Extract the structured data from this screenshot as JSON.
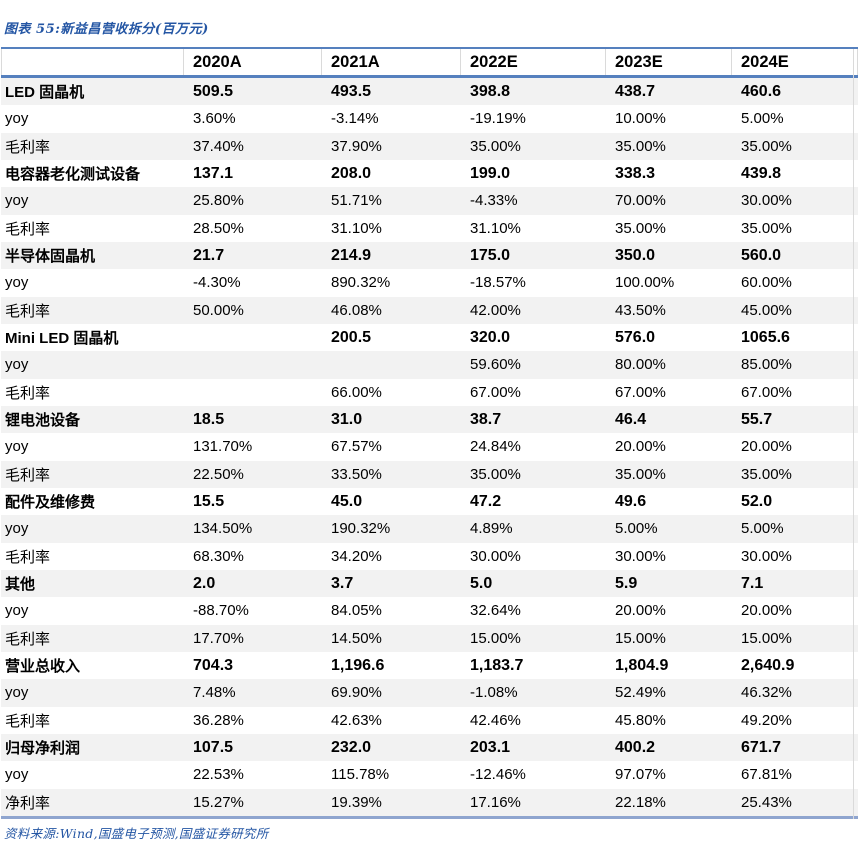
{
  "figure": {
    "title": "图表 55:新益昌营收拆分(百万元)"
  },
  "source": {
    "text": "资料来源:Wind,国盛电子预测,国盛证券研究所"
  },
  "colors": {
    "accent_blue": "#2456A4",
    "border_blue": "#5580BE",
    "border_blue_light": "#8FA5CF",
    "row_stripe": "#F2F2F2"
  },
  "chart_data": {
    "type": "table",
    "title": "图表 55:新益昌营收拆分(百万元)",
    "columns": [
      "",
      "2020A",
      "2021A",
      "2022E",
      "2023E",
      "2024E"
    ],
    "rows": [
      {
        "label": "LED 固晶机",
        "bold": true,
        "values": [
          "509.5",
          "493.5",
          "398.8",
          "438.7",
          "460.6"
        ]
      },
      {
        "label": "yoy",
        "bold": false,
        "values": [
          "3.60%",
          "-3.14%",
          "-19.19%",
          "10.00%",
          "5.00%"
        ]
      },
      {
        "label": "毛利率",
        "bold": false,
        "values": [
          "37.40%",
          "37.90%",
          "35.00%",
          "35.00%",
          "35.00%"
        ]
      },
      {
        "label": "电容器老化测试设备",
        "bold": true,
        "values": [
          "137.1",
          "208.0",
          "199.0",
          "338.3",
          "439.8"
        ]
      },
      {
        "label": "yoy",
        "bold": false,
        "values": [
          "25.80%",
          "51.71%",
          "-4.33%",
          "70.00%",
          "30.00%"
        ]
      },
      {
        "label": "毛利率",
        "bold": false,
        "values": [
          "28.50%",
          "31.10%",
          "31.10%",
          "35.00%",
          "35.00%"
        ]
      },
      {
        "label": "半导体固晶机",
        "bold": true,
        "values": [
          "21.7",
          "214.9",
          "175.0",
          "350.0",
          "560.0"
        ]
      },
      {
        "label": "yoy",
        "bold": false,
        "values": [
          "-4.30%",
          "890.32%",
          "-18.57%",
          "100.00%",
          "60.00%"
        ]
      },
      {
        "label": "毛利率",
        "bold": false,
        "values": [
          "50.00%",
          "46.08%",
          "42.00%",
          "43.50%",
          "45.00%"
        ]
      },
      {
        "label": "Mini LED 固晶机",
        "bold": true,
        "values": [
          "",
          "200.5",
          "320.0",
          "576.0",
          "1065.6"
        ]
      },
      {
        "label": "yoy",
        "bold": false,
        "values": [
          "",
          "",
          "59.60%",
          "80.00%",
          "85.00%"
        ]
      },
      {
        "label": "毛利率",
        "bold": false,
        "values": [
          "",
          "66.00%",
          "67.00%",
          "67.00%",
          "67.00%"
        ]
      },
      {
        "label": "锂电池设备",
        "bold": true,
        "values": [
          "18.5",
          "31.0",
          "38.7",
          "46.4",
          "55.7"
        ]
      },
      {
        "label": "yoy",
        "bold": false,
        "values": [
          "131.70%",
          "67.57%",
          "24.84%",
          "20.00%",
          "20.00%"
        ]
      },
      {
        "label": "毛利率",
        "bold": false,
        "values": [
          "22.50%",
          "33.50%",
          "35.00%",
          "35.00%",
          "35.00%"
        ]
      },
      {
        "label": "配件及维修费",
        "bold": true,
        "values": [
          "15.5",
          "45.0",
          "47.2",
          "49.6",
          "52.0"
        ]
      },
      {
        "label": "yoy",
        "bold": false,
        "values": [
          "134.50%",
          "190.32%",
          "4.89%",
          "5.00%",
          "5.00%"
        ]
      },
      {
        "label": "毛利率",
        "bold": false,
        "values": [
          "68.30%",
          "34.20%",
          "30.00%",
          "30.00%",
          "30.00%"
        ]
      },
      {
        "label": "其他",
        "bold": true,
        "values": [
          "2.0",
          "3.7",
          "5.0",
          "5.9",
          "7.1"
        ]
      },
      {
        "label": "yoy",
        "bold": false,
        "values": [
          "-88.70%",
          "84.05%",
          "32.64%",
          "20.00%",
          "20.00%"
        ]
      },
      {
        "label": "毛利率",
        "bold": false,
        "values": [
          "17.70%",
          "14.50%",
          "15.00%",
          "15.00%",
          "15.00%"
        ]
      },
      {
        "label": "营业总收入",
        "bold": true,
        "values": [
          "704.3",
          "1,196.6",
          "1,183.7",
          "1,804.9",
          "2,640.9"
        ]
      },
      {
        "label": "yoy",
        "bold": false,
        "values": [
          "7.48%",
          "69.90%",
          "-1.08%",
          "52.49%",
          "46.32%"
        ]
      },
      {
        "label": "毛利率",
        "bold": false,
        "values": [
          "36.28%",
          "42.63%",
          "42.46%",
          "45.80%",
          "49.20%"
        ]
      },
      {
        "label": "归母净利润",
        "bold": true,
        "values": [
          "107.5",
          "232.0",
          "203.1",
          "400.2",
          "671.7"
        ]
      },
      {
        "label": "yoy",
        "bold": false,
        "values": [
          "22.53%",
          "115.78%",
          "-12.46%",
          "97.07%",
          "67.81%"
        ]
      },
      {
        "label": "净利率",
        "bold": false,
        "values": [
          "15.27%",
          "19.39%",
          "17.16%",
          "22.18%",
          "25.43%"
        ]
      }
    ]
  }
}
